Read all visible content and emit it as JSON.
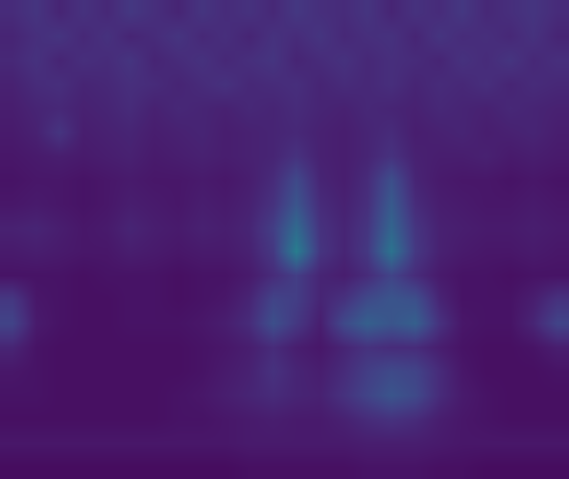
{
  "chart_data": {
    "type": "heatmap",
    "tick_labels": false,
    "grid": false,
    "zlim": [
      0,
      1
    ],
    "cells": [
      [
        0.12,
        0.15,
        0.1,
        0.14,
        0.11,
        0.16,
        0.13,
        0.1,
        0.15,
        0.12,
        0.14,
        0.11,
        0.16,
        0.13,
        0.12,
        0.15,
        0.1,
        0.14,
        0.12,
        0.16,
        0.11,
        0.13,
        0.15,
        0.12
      ],
      [
        0.1,
        0.13,
        0.15,
        0.11,
        0.14,
        0.1,
        0.12,
        0.15,
        0.11,
        0.13,
        0.1,
        0.14,
        0.12,
        0.15,
        0.11,
        0.13,
        0.14,
        0.1,
        0.15,
        0.12,
        0.13,
        0.11,
        0.14,
        0.1
      ],
      [
        0.11,
        0.14,
        0.1,
        0.13,
        0.12,
        0.15,
        0.1,
        0.12,
        0.14,
        0.11,
        0.13,
        0.15,
        0.1,
        0.12,
        0.14,
        0.11,
        0.13,
        0.12,
        0.1,
        0.14,
        0.12,
        0.15,
        0.11,
        0.13
      ],
      [
        0.09,
        0.12,
        0.13,
        0.1,
        0.11,
        0.13,
        0.12,
        0.1,
        0.12,
        0.14,
        0.11,
        0.12,
        0.13,
        0.1,
        0.12,
        0.11,
        0.13,
        0.1,
        0.12,
        0.11,
        0.13,
        0.1,
        0.12,
        0.11
      ],
      [
        0.08,
        0.1,
        0.11,
        0.09,
        0.1,
        0.12,
        0.09,
        0.11,
        0.1,
        0.09,
        0.11,
        0.1,
        0.12,
        0.1,
        0.09,
        0.11,
        0.1,
        0.09,
        0.11,
        0.1,
        0.09,
        0.11,
        0.1,
        0.09
      ],
      [
        0.07,
        0.09,
        0.15,
        0.08,
        0.09,
        0.1,
        0.08,
        0.09,
        0.1,
        0.08,
        0.09,
        0.1,
        0.11,
        0.09,
        0.08,
        0.1,
        0.12,
        0.08,
        0.09,
        0.1,
        0.08,
        0.09,
        0.1,
        0.08
      ],
      [
        0.06,
        0.07,
        0.08,
        0.07,
        0.08,
        0.09,
        0.07,
        0.08,
        0.09,
        0.08,
        0.09,
        0.1,
        0.14,
        0.09,
        0.08,
        0.1,
        0.14,
        0.09,
        0.08,
        0.08,
        0.09,
        0.07,
        0.08,
        0.07
      ],
      [
        0.05,
        0.06,
        0.06,
        0.05,
        0.06,
        0.07,
        0.06,
        0.06,
        0.07,
        0.06,
        0.08,
        0.12,
        0.22,
        0.1,
        0.08,
        0.12,
        0.24,
        0.1,
        0.07,
        0.06,
        0.06,
        0.05,
        0.06,
        0.05
      ],
      [
        0.06,
        0.07,
        0.06,
        0.05,
        0.06,
        0.08,
        0.07,
        0.06,
        0.08,
        0.07,
        0.09,
        0.14,
        0.26,
        0.12,
        0.09,
        0.13,
        0.28,
        0.12,
        0.08,
        0.07,
        0.06,
        0.06,
        0.07,
        0.06
      ],
      [
        0.09,
        0.1,
        0.08,
        0.06,
        0.07,
        0.1,
        0.08,
        0.07,
        0.09,
        0.08,
        0.1,
        0.18,
        0.34,
        0.14,
        0.1,
        0.15,
        0.32,
        0.15,
        0.09,
        0.08,
        0.07,
        0.07,
        0.08,
        0.07
      ],
      [
        0.07,
        0.08,
        0.07,
        0.06,
        0.06,
        0.08,
        0.07,
        0.06,
        0.07,
        0.07,
        0.09,
        0.16,
        0.42,
        0.15,
        0.1,
        0.16,
        0.38,
        0.16,
        0.09,
        0.07,
        0.06,
        0.06,
        0.07,
        0.06
      ],
      [
        0.05,
        0.05,
        0.05,
        0.04,
        0.05,
        0.05,
        0.05,
        0.04,
        0.05,
        0.05,
        0.07,
        0.12,
        0.18,
        0.1,
        0.08,
        0.12,
        0.2,
        0.12,
        0.07,
        0.05,
        0.05,
        0.04,
        0.05,
        0.05
      ],
      [
        0.16,
        0.06,
        0.05,
        0.04,
        0.04,
        0.05,
        0.05,
        0.04,
        0.05,
        0.06,
        0.1,
        0.2,
        0.18,
        0.1,
        0.14,
        0.22,
        0.26,
        0.24,
        0.1,
        0.05,
        0.05,
        0.05,
        0.08,
        0.14
      ],
      [
        0.2,
        0.07,
        0.05,
        0.04,
        0.04,
        0.05,
        0.05,
        0.05,
        0.06,
        0.08,
        0.12,
        0.24,
        0.16,
        0.08,
        0.22,
        0.3,
        0.26,
        0.3,
        0.14,
        0.06,
        0.05,
        0.05,
        0.1,
        0.2
      ],
      [
        0.1,
        0.05,
        0.04,
        0.04,
        0.04,
        0.04,
        0.04,
        0.04,
        0.05,
        0.06,
        0.08,
        0.12,
        0.08,
        0.06,
        0.1,
        0.14,
        0.12,
        0.12,
        0.08,
        0.05,
        0.04,
        0.04,
        0.05,
        0.08
      ],
      [
        0.06,
        0.05,
        0.04,
        0.04,
        0.04,
        0.04,
        0.04,
        0.04,
        0.05,
        0.07,
        0.09,
        0.14,
        0.1,
        0.08,
        0.12,
        0.18,
        0.22,
        0.2,
        0.12,
        0.06,
        0.04,
        0.04,
        0.04,
        0.05
      ],
      [
        0.05,
        0.05,
        0.04,
        0.04,
        0.04,
        0.04,
        0.04,
        0.05,
        0.06,
        0.08,
        0.1,
        0.12,
        0.1,
        0.09,
        0.14,
        0.2,
        0.26,
        0.22,
        0.12,
        0.07,
        0.05,
        0.04,
        0.04,
        0.04
      ],
      [
        0.04,
        0.04,
        0.04,
        0.04,
        0.04,
        0.04,
        0.04,
        0.05,
        0.05,
        0.06,
        0.07,
        0.08,
        0.07,
        0.07,
        0.09,
        0.12,
        0.14,
        0.12,
        0.08,
        0.06,
        0.05,
        0.04,
        0.04,
        0.04
      ],
      [
        0.06,
        0.06,
        0.06,
        0.06,
        0.06,
        0.06,
        0.06,
        0.06,
        0.06,
        0.06,
        0.07,
        0.07,
        0.07,
        0.07,
        0.07,
        0.08,
        0.08,
        0.08,
        0.07,
        0.06,
        0.06,
        0.06,
        0.06,
        0.06
      ],
      [
        0.03,
        0.03,
        0.03,
        0.03,
        0.03,
        0.03,
        0.03,
        0.03,
        0.03,
        0.03,
        0.04,
        0.04,
        0.04,
        0.04,
        0.04,
        0.05,
        0.05,
        0.05,
        0.04,
        0.04,
        0.03,
        0.03,
        0.03,
        0.03
      ]
    ]
  }
}
